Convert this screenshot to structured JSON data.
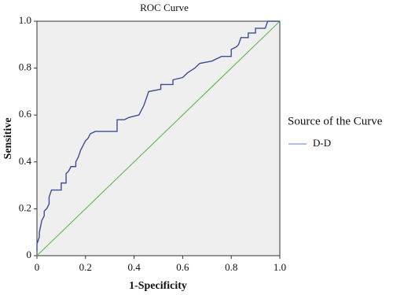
{
  "chart_data": {
    "type": "line",
    "title": "ROC Curve",
    "x_label": "1-Specificity",
    "y_label": "Sensitive",
    "legend_title": "Source of the Curve",
    "xlim": [
      0,
      1
    ],
    "ylim": [
      0,
      1
    ],
    "xticks": [
      0,
      0.2,
      0.4,
      0.6,
      0.8,
      {
        "value": 1,
        "label": "1.0"
      }
    ],
    "yticks": [
      0,
      0.2,
      0.4,
      0.6,
      0.8,
      {
        "value": 1,
        "label": "1.0"
      }
    ],
    "series": [
      {
        "name": "D-D",
        "color": "#3d4d96",
        "x": [
          0,
          0,
          0.01,
          0.01,
          0.02,
          0.03,
          0.03,
          0.04,
          0.05,
          0.05,
          0.06,
          0.1,
          0.1,
          0.12,
          0.12,
          0.13,
          0.14,
          0.16,
          0.16,
          0.17,
          0.18,
          0.19,
          0.2,
          0.21,
          0.22,
          0.24,
          0.33,
          0.33,
          0.36,
          0.38,
          0.42,
          0.43,
          0.44,
          0.45,
          0.46,
          0.51,
          0.51,
          0.56,
          0.56,
          0.6,
          0.62,
          0.65,
          0.67,
          0.72,
          0.76,
          0.8,
          0.8,
          0.82,
          0.83,
          0.84,
          0.87,
          0.87,
          0.9,
          0.9,
          0.94,
          0.95,
          1
        ],
        "values": [
          0.02,
          0.05,
          0.08,
          0.1,
          0.15,
          0.17,
          0.19,
          0.2,
          0.22,
          0.25,
          0.28,
          0.28,
          0.31,
          0.31,
          0.35,
          0.36,
          0.38,
          0.38,
          0.4,
          0.42,
          0.45,
          0.47,
          0.49,
          0.5,
          0.52,
          0.53,
          0.53,
          0.58,
          0.58,
          0.59,
          0.6,
          0.62,
          0.64,
          0.67,
          0.7,
          0.71,
          0.73,
          0.73,
          0.75,
          0.76,
          0.78,
          0.8,
          0.82,
          0.83,
          0.85,
          0.85,
          0.88,
          0.89,
          0.9,
          0.93,
          0.93,
          0.95,
          0.95,
          0.97,
          0.97,
          1,
          1
        ]
      }
    ],
    "reference_line": {
      "color": "#6cb85a",
      "x": [
        0,
        1
      ],
      "values": [
        0,
        1
      ]
    },
    "legend_line_color": "#7a9ad6"
  }
}
